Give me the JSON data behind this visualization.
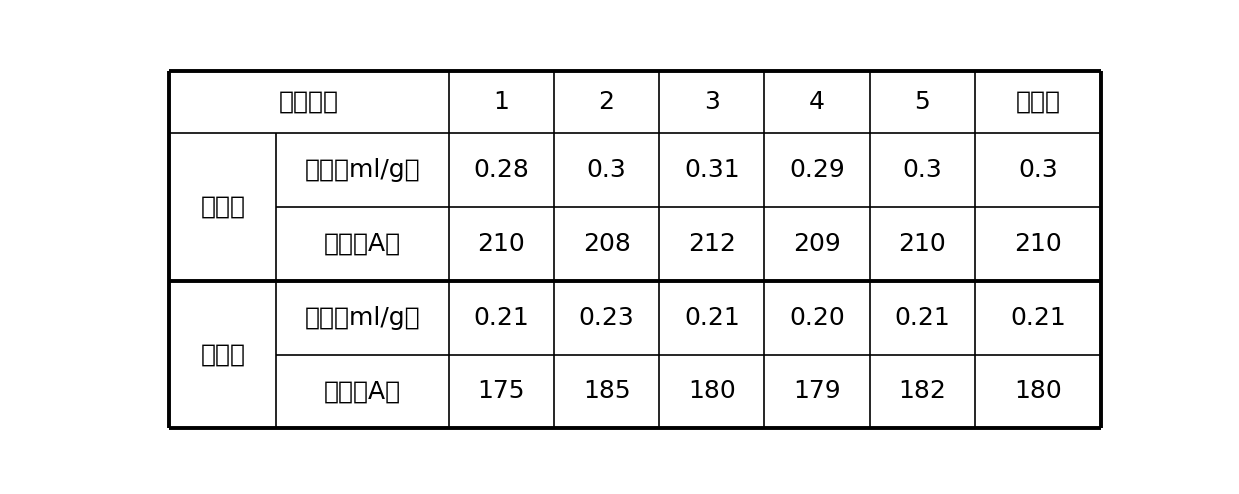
{
  "header_label": "实验编号",
  "header_nums": [
    "1",
    "2",
    "3",
    "4",
    "5",
    "平均值"
  ],
  "group1_label": "实验组",
  "group2_label": "对照组",
  "row1_label": "孔容（ml/g）",
  "row2_label": "孔径（A）",
  "group1_row1": [
    "0.28",
    "0.3",
    "0.31",
    "0.29",
    "0.3",
    "0.3"
  ],
  "group1_row2": [
    "210",
    "208",
    "212",
    "209",
    "210",
    "210"
  ],
  "group2_row1": [
    "0.21",
    "0.23",
    "0.21",
    "0.20",
    "0.21",
    "0.21"
  ],
  "group2_row2": [
    "175",
    "185",
    "180",
    "179",
    "182",
    "180"
  ],
  "bg_color": "#ffffff",
  "text_color": "#000000",
  "line_color": "#000000",
  "thin_lw": 1.2,
  "thick_lw": 2.8,
  "font_size": 18
}
